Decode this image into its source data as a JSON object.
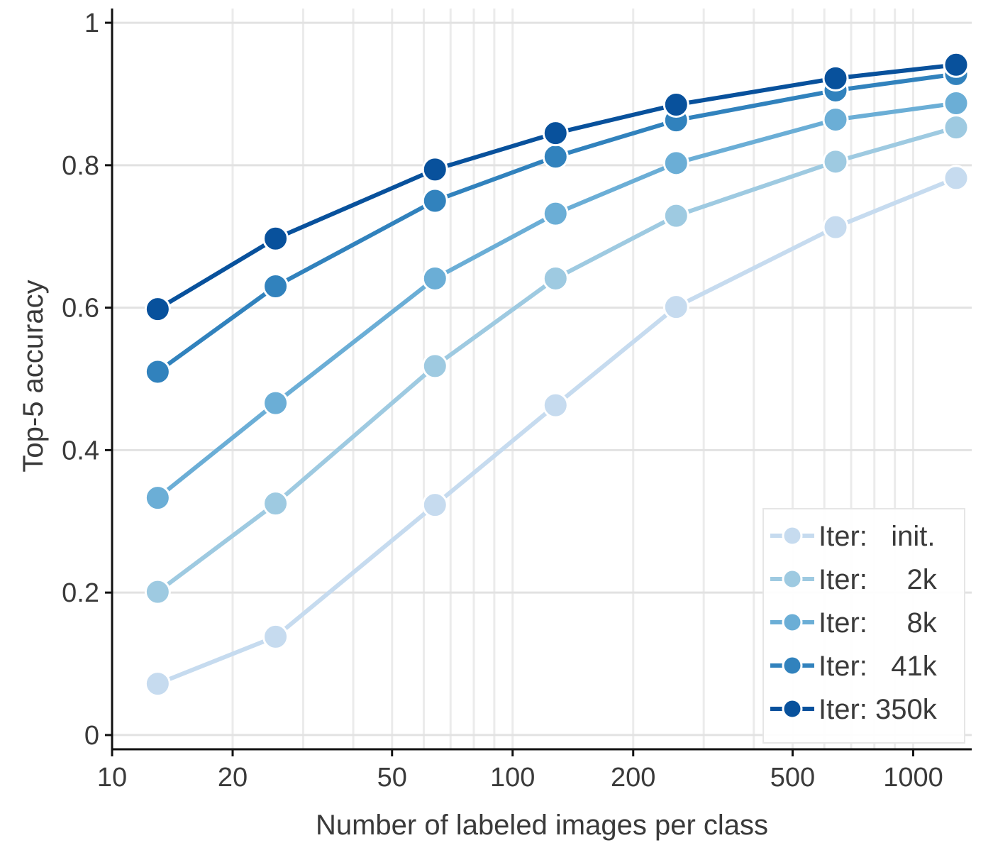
{
  "chart_data": {
    "type": "line",
    "xlabel": "Number of labeled images per class",
    "ylabel": "Top-5 accuracy",
    "x_scale": "log",
    "xlim": [
      10,
      1400
    ],
    "ylim": [
      -0.02,
      1.02
    ],
    "grid": true,
    "legend_position": "bottom-right",
    "x_ticks": [
      10,
      20,
      50,
      100,
      200,
      500,
      1000
    ],
    "x_tick_labels": [
      "10",
      "20",
      "50",
      "100",
      "200",
      "500",
      "1000"
    ],
    "y_ticks": [
      0,
      0.2,
      0.4,
      0.6,
      0.8,
      1
    ],
    "y_tick_labels": [
      "0",
      "0.2",
      "0.4",
      "0.6",
      "0.8",
      "1"
    ],
    "x": [
      13,
      25.6,
      64,
      128,
      256,
      640,
      1280
    ],
    "series": [
      {
        "name": "Iter:   init.",
        "color": "#c6dbef",
        "values": [
          0.072,
          0.138,
          0.323,
          0.463,
          0.601,
          0.713,
          0.782
        ]
      },
      {
        "name": "Iter:     2k",
        "color": "#9ecae1",
        "values": [
          0.201,
          0.325,
          0.518,
          0.641,
          0.729,
          0.805,
          0.853
        ]
      },
      {
        "name": "Iter:     8k",
        "color": "#6baed6",
        "values": [
          0.333,
          0.466,
          0.641,
          0.732,
          0.803,
          0.864,
          0.887
        ]
      },
      {
        "name": "Iter:   41k",
        "color": "#3182bd",
        "values": [
          0.51,
          0.63,
          0.75,
          0.812,
          0.863,
          0.905,
          0.928
        ]
      },
      {
        "name": "Iter: 350k",
        "color": "#08519c",
        "values": [
          0.598,
          0.697,
          0.794,
          0.845,
          0.885,
          0.922,
          0.941
        ]
      }
    ]
  }
}
